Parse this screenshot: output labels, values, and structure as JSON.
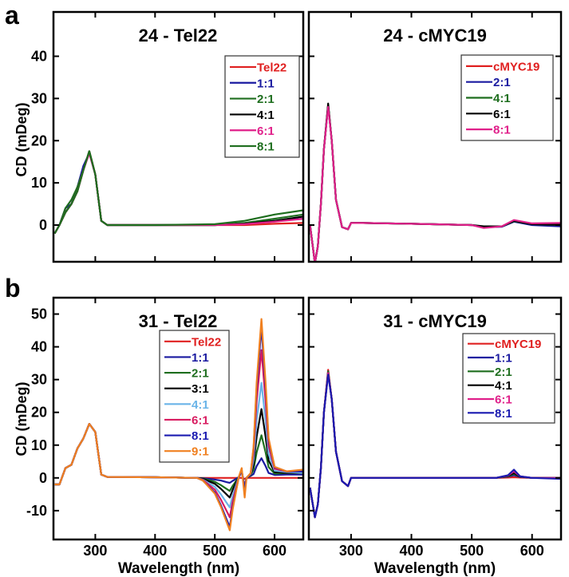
{
  "figure": {
    "panel_labels": [
      "a",
      "b"
    ],
    "ylabel": "CD (mDeg)",
    "xlabel": "Wavelength (nm)"
  },
  "chart_data": [
    {
      "id": "a-left",
      "type": "line",
      "title": "24 - Tel22",
      "xlim": [
        230,
        648
      ],
      "ylim": [
        -8.7,
        50.5
      ],
      "xticks": [
        300,
        400,
        500,
        600
      ],
      "yticks": [
        0,
        10,
        20,
        30,
        40
      ],
      "show_xticklabels": false,
      "show_yticklabels": true,
      "x": [
        232,
        240,
        250,
        260,
        270,
        280,
        290,
        300,
        310,
        320,
        400,
        500,
        550,
        600,
        648
      ],
      "series": [
        {
          "name": "Tel22",
          "color": "#e02020",
          "y": [
            -2,
            0,
            3,
            5,
            8,
            13,
            17.5,
            12,
            1,
            0,
            0,
            0,
            0,
            0.3,
            0.5
          ]
        },
        {
          "name": "1:1",
          "color": "#1a1aa0",
          "y": [
            -2,
            0,
            4,
            5,
            9,
            14,
            17,
            12,
            1,
            0,
            0,
            0,
            0.3,
            1,
            1.5
          ]
        },
        {
          "name": "2:1",
          "color": "#1e6e1e",
          "y": [
            -2,
            0,
            4,
            6,
            9,
            13,
            17.5,
            12,
            1,
            0,
            0,
            0,
            0.5,
            1.5,
            2.5
          ]
        },
        {
          "name": "4:1",
          "color": "#000000",
          "y": [
            -2,
            0,
            3,
            5,
            8,
            13,
            17.5,
            12,
            1,
            0,
            0,
            0,
            0.3,
            1,
            2
          ]
        },
        {
          "name": "6:1",
          "color": "#e0208a",
          "y": [
            -2,
            0,
            3,
            5,
            8,
            13,
            17,
            12,
            1,
            0,
            0,
            0,
            0.2,
            0.8,
            1.5
          ]
        },
        {
          "name": "8:1",
          "color": "#1e6e1e",
          "y": [
            -2,
            0,
            3,
            5,
            8,
            13,
            17.5,
            12,
            1,
            0,
            0,
            0.2,
            1,
            2.5,
            3.5
          ]
        }
      ]
    },
    {
      "id": "a-right",
      "type": "line",
      "title": "24 - cMYC19",
      "xlim": [
        230,
        648
      ],
      "ylim": [
        -8.7,
        50.5
      ],
      "xticks": [
        300,
        400,
        500,
        600
      ],
      "yticks": [
        0,
        10,
        20,
        30,
        40
      ],
      "show_xticklabels": false,
      "show_yticklabels": false,
      "x": [
        232,
        240,
        245,
        250,
        255,
        262,
        268,
        275,
        285,
        295,
        300,
        320,
        400,
        500,
        520,
        550,
        570,
        600,
        648
      ],
      "series": [
        {
          "name": "cMYC19",
          "color": "#e02020",
          "y": [
            0,
            -9,
            -5,
            5,
            18,
            28.5,
            20,
            6,
            -0.5,
            -1,
            0.5,
            0.5,
            0.3,
            0,
            -0.5,
            -0.3,
            1,
            0.3,
            0.3
          ]
        },
        {
          "name": "2:1",
          "color": "#1a1aa0",
          "y": [
            0,
            -9,
            -5,
            5,
            18,
            28.3,
            20,
            6,
            -0.5,
            -1,
            0.5,
            0.5,
            0.3,
            0,
            -0.5,
            -0.4,
            0.8,
            0,
            -0.3
          ]
        },
        {
          "name": "4:1",
          "color": "#1e6e1e",
          "y": [
            0,
            -9,
            -5,
            5,
            18,
            28.4,
            20,
            6,
            -0.5,
            -1,
            0.5,
            0.5,
            0.3,
            0,
            -0.5,
            -0.3,
            0.9,
            0.2,
            0
          ]
        },
        {
          "name": "6:1",
          "color": "#000000",
          "y": [
            0,
            -9,
            -5,
            5,
            18,
            28.8,
            20,
            6,
            -0.5,
            -1,
            0.5,
            0.5,
            0.3,
            0,
            -0.3,
            -0.3,
            1,
            0.2,
            0.1
          ]
        },
        {
          "name": "8:1",
          "color": "#e0208a",
          "y": [
            0,
            -9,
            -5,
            5,
            18,
            28,
            20,
            6,
            -0.5,
            -1,
            0.5,
            0.5,
            0.3,
            0,
            -0.7,
            -0.3,
            1.2,
            0.4,
            0.5
          ]
        }
      ]
    },
    {
      "id": "b-left",
      "type": "line",
      "title": "31 - Tel22",
      "xlim": [
        230,
        648
      ],
      "ylim": [
        -18.8,
        55
      ],
      "xticks": [
        300,
        400,
        500,
        600
      ],
      "yticks": [
        -10,
        0,
        10,
        20,
        30,
        40,
        50
      ],
      "show_xticklabels": true,
      "show_yticklabels": true,
      "x": [
        232,
        240,
        250,
        260,
        270,
        280,
        290,
        300,
        310,
        320,
        400,
        470,
        480,
        500,
        510,
        520,
        525,
        530,
        540,
        545,
        550,
        553,
        560,
        565,
        570,
        578,
        585,
        590,
        600,
        620,
        648
      ],
      "series": [
        {
          "name": "Tel22",
          "color": "#e02020",
          "y": [
            -2,
            -2,
            3,
            4,
            9,
            12,
            16.5,
            14,
            1,
            0.3,
            0.2,
            0,
            0,
            0,
            0,
            0,
            0,
            0,
            0,
            0,
            -0.3,
            0,
            0,
            0,
            0,
            0,
            0,
            0,
            0,
            0,
            0
          ]
        },
        {
          "name": "1:1",
          "color": "#1a1aa0",
          "y": [
            -2,
            -2,
            3,
            4,
            9,
            12,
            16.5,
            14,
            1,
            0.3,
            0.2,
            0,
            -0.1,
            -0.5,
            -0.8,
            -1.3,
            -1.5,
            -0.9,
            0.2,
            2,
            -3,
            0,
            0.6,
            1.2,
            3.6,
            6,
            3.6,
            1.5,
            0.9,
            1,
            1
          ]
        },
        {
          "name": "2:1",
          "color": "#1e6e1e",
          "y": [
            -2,
            -2,
            3,
            4,
            9,
            12,
            16.5,
            14,
            1,
            0.3,
            0.2,
            0,
            -0.2,
            -1.2,
            -2.2,
            -3.4,
            -4,
            -2.4,
            0.2,
            2,
            -3,
            0,
            0.8,
            2.6,
            7.8,
            13,
            7.8,
            3.3,
            1.3,
            1.5,
            1.5
          ]
        },
        {
          "name": "3:1",
          "color": "#000000",
          "y": [
            -2,
            -2,
            3,
            4,
            9,
            12,
            16.5,
            14,
            1,
            0.3,
            0.2,
            0,
            -0.3,
            -1.8,
            -3.3,
            -5.1,
            -6,
            -3.6,
            0.2,
            2,
            -3,
            0,
            0.9,
            4.2,
            12.6,
            21,
            12.6,
            5.3,
            1.8,
            1.5,
            1.5
          ]
        },
        {
          "name": "4:1",
          "color": "#6ab4e8",
          "y": [
            -2,
            -2,
            3,
            4,
            9,
            12,
            16.5,
            14,
            1,
            0.3,
            0.2,
            0,
            -0.5,
            -2.7,
            -5,
            -7.7,
            -9,
            -5.4,
            0.2,
            2,
            -3,
            0,
            1.1,
            5.8,
            17.4,
            29,
            17.4,
            7.3,
            2.2,
            1.8,
            1.5
          ]
        },
        {
          "name": "6:1",
          "color": "#d81b60",
          "y": [
            -2,
            -2,
            3,
            4,
            9,
            12,
            16.5,
            14,
            1,
            0.3,
            0.2,
            0,
            -0.6,
            -3.6,
            -6.6,
            -10.2,
            -12,
            -7.2,
            0.2,
            2,
            -3,
            0,
            1.3,
            7.8,
            23.4,
            39,
            23.4,
            9.8,
            2.8,
            2,
            2
          ]
        },
        {
          "name": "8:1",
          "color": "#1a1ab0",
          "y": [
            -2,
            -2,
            3,
            4,
            9,
            12,
            16.5,
            14,
            1,
            0.3,
            0.2,
            0,
            -0.8,
            -4.5,
            -8.3,
            -12.8,
            -15,
            -9,
            0.2,
            2,
            -3,
            0,
            1.4,
            9.2,
            27.6,
            46,
            27.6,
            11.5,
            3.3,
            2,
            2
          ]
        },
        {
          "name": "9:1",
          "color": "#f08020",
          "y": [
            -2,
            -2,
            3,
            4,
            9,
            12,
            16.5,
            14,
            1,
            0.3,
            0.2,
            0,
            -0.8,
            -4.8,
            -8.8,
            -13.6,
            -16,
            -9.6,
            0.2,
            3,
            -6,
            0,
            1.5,
            9.7,
            29.1,
            48.5,
            29.1,
            12.1,
            3.4,
            2,
            2.5
          ]
        }
      ]
    },
    {
      "id": "b-right",
      "type": "line",
      "title": "31 - cMYC19",
      "xlim": [
        230,
        648
      ],
      "ylim": [
        -18.8,
        55
      ],
      "xticks": [
        300,
        400,
        500,
        600
      ],
      "yticks": [
        -10,
        0,
        10,
        20,
        30,
        40,
        50
      ],
      "show_xticklabels": true,
      "show_yticklabels": false,
      "x": [
        232,
        240,
        245,
        250,
        255,
        262,
        268,
        275,
        285,
        295,
        300,
        320,
        400,
        500,
        540,
        560,
        570,
        580,
        600,
        648
      ],
      "series": [
        {
          "name": "cMYC19",
          "color": "#e02020",
          "y": [
            -3,
            -12,
            -8,
            3,
            20,
            33,
            24,
            8,
            -1,
            -2.5,
            0,
            0,
            0,
            0,
            0,
            0.1,
            0.2,
            0.1,
            0,
            0
          ]
        },
        {
          "name": "1:1",
          "color": "#1a1aa0",
          "y": [
            -3,
            -12,
            -8,
            3,
            20,
            32.5,
            24,
            8,
            -1,
            -2.5,
            0,
            0,
            0,
            0,
            0,
            0.4,
            0.8,
            0.3,
            0,
            0
          ]
        },
        {
          "name": "2:1",
          "color": "#1e6e1e",
          "y": [
            -3,
            -12,
            -8,
            3,
            20,
            32.5,
            24,
            8,
            -1,
            -2.5,
            0,
            0,
            0,
            0,
            0,
            0.5,
            1.2,
            0.4,
            0,
            0
          ]
        },
        {
          "name": "4:1",
          "color": "#000000",
          "y": [
            -3,
            -12,
            -8,
            3,
            20,
            32,
            24,
            8,
            -1,
            -2.5,
            0,
            0,
            0,
            0,
            0,
            0.6,
            1.5,
            0.4,
            0,
            0
          ]
        },
        {
          "name": "6:1",
          "color": "#e0208a",
          "y": [
            -3,
            -12,
            -8,
            3,
            20,
            32,
            24,
            8,
            -1,
            -2.5,
            0,
            0,
            0,
            0,
            0,
            0.7,
            2,
            0.5,
            0,
            0
          ]
        },
        {
          "name": "8:1",
          "color": "#1a1ab0",
          "y": [
            -3,
            -12,
            -8,
            3,
            20,
            31.5,
            24,
            8,
            -1,
            -2.5,
            0,
            0,
            0,
            0,
            0,
            0.8,
            2.5,
            0.5,
            0,
            -0.3
          ]
        }
      ]
    }
  ]
}
